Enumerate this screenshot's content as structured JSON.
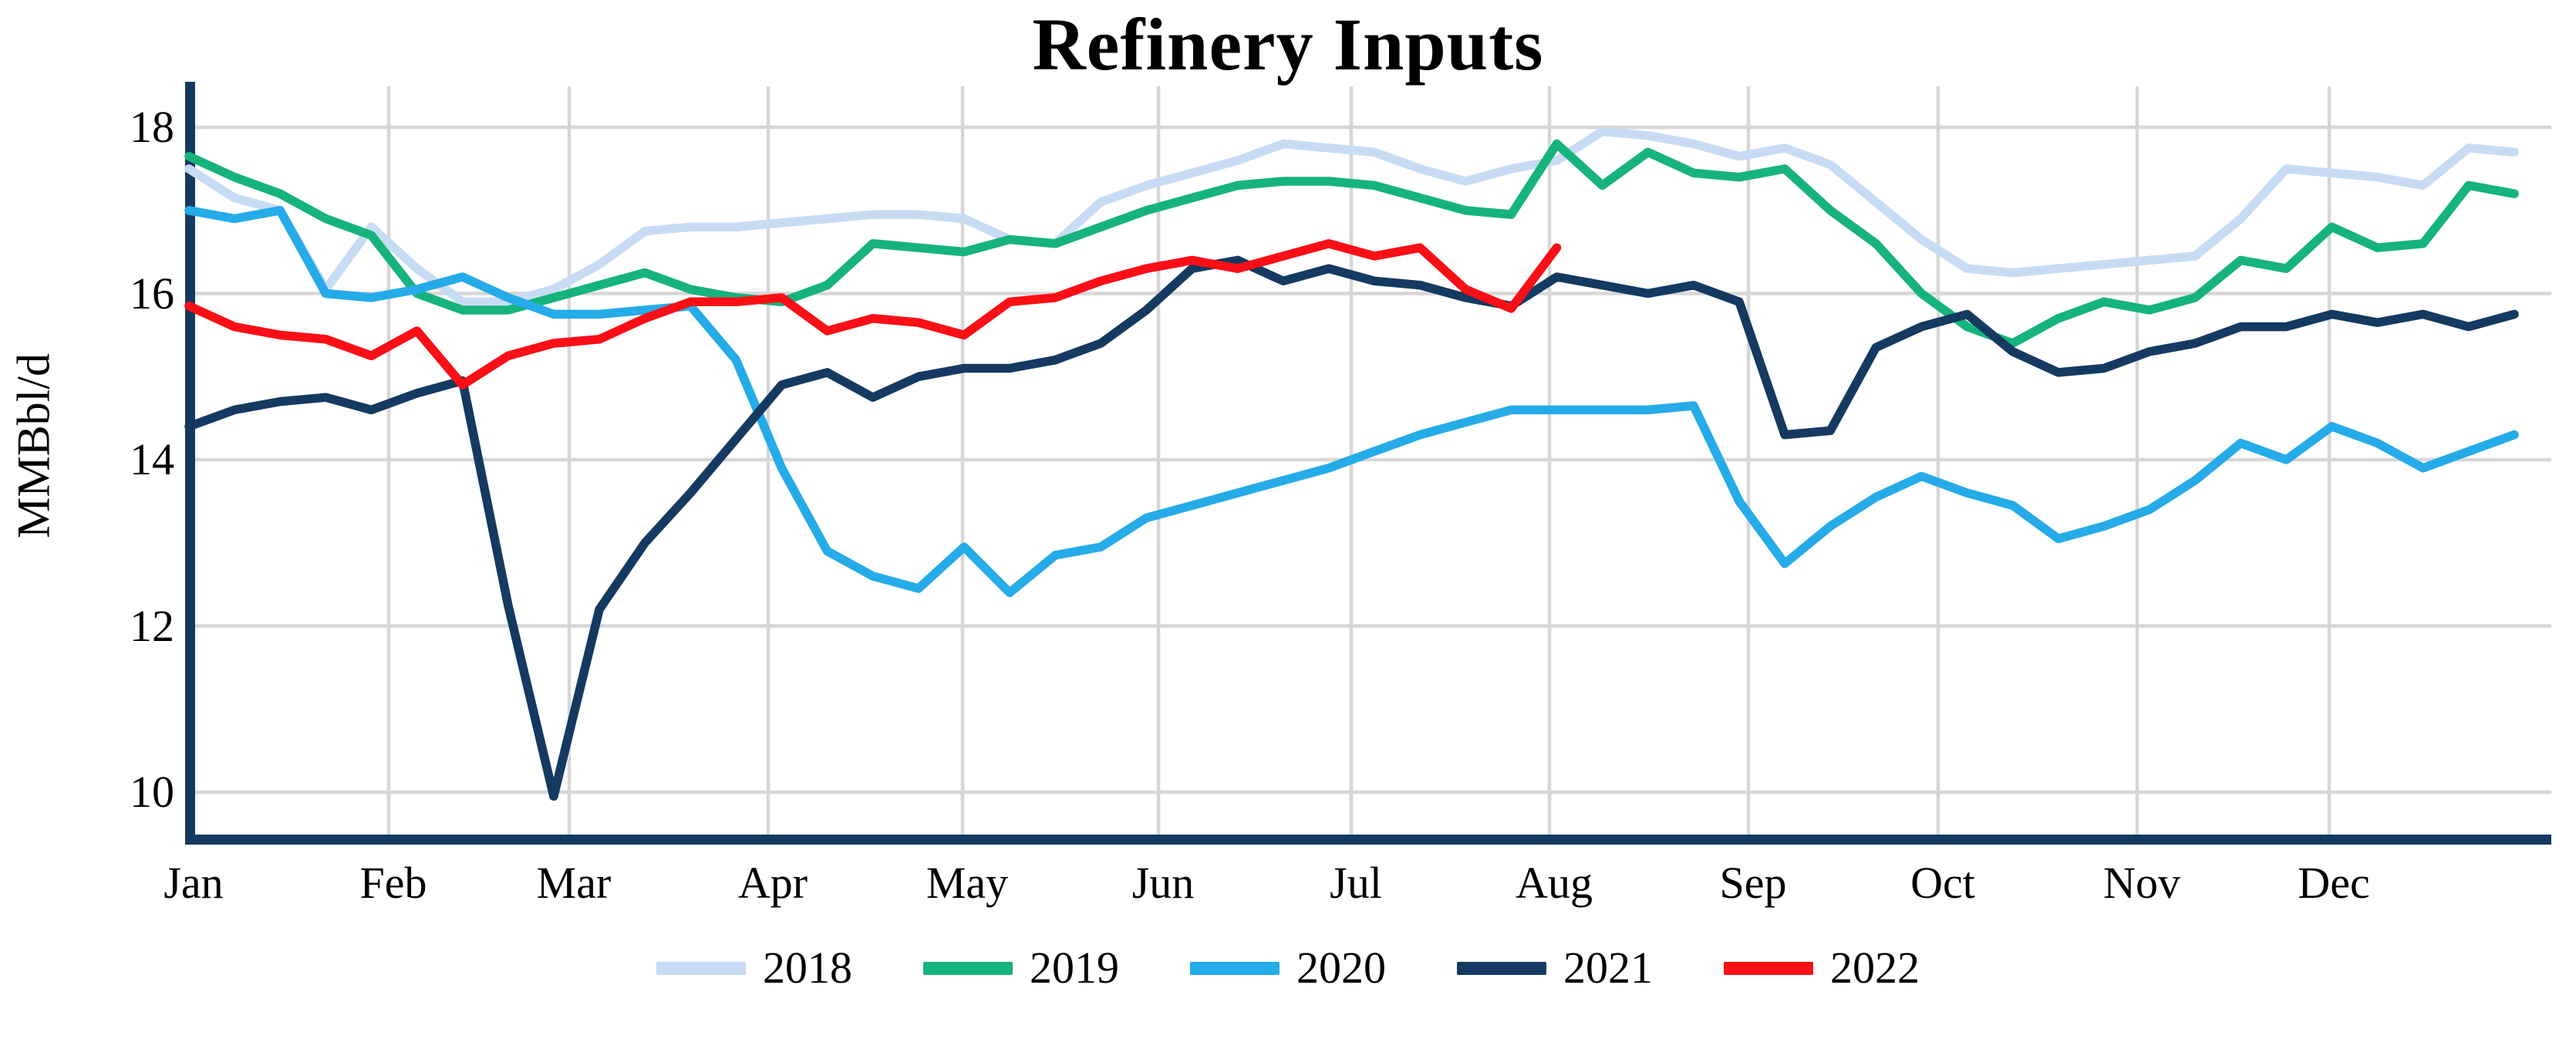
{
  "title": "Refinery Inputs",
  "y_axis": {
    "label": "MMBbl/d",
    "ticks": [
      18,
      16,
      14,
      12,
      10
    ]
  },
  "x_axis": {
    "months": [
      "Jan",
      "Feb",
      "Mar",
      "Apr",
      "May",
      "Jun",
      "Jul",
      "Aug",
      "Sep",
      "Oct",
      "Nov",
      "Dec"
    ]
  },
  "chart_data": {
    "type": "line",
    "title": "Refinery Inputs",
    "xlabel": "",
    "ylabel": "MMBbl/d",
    "x_unit": "week of year (weekly data)",
    "x_tick_labels": [
      "Jan",
      "Feb",
      "Mar",
      "Apr",
      "May",
      "Jun",
      "Jul",
      "Aug",
      "Sep",
      "Oct",
      "Nov",
      "Dec"
    ],
    "y_ticks": [
      18,
      16,
      14,
      12,
      10
    ],
    "ylim": [
      9.3,
      18.6
    ],
    "grid": true,
    "legend_position": "bottom",
    "series": [
      {
        "name": "2018",
        "color": "#c7dcf4",
        "values": [
          17.5,
          17.15,
          17.0,
          16.05,
          16.8,
          16.3,
          15.9,
          15.9,
          16.05,
          16.35,
          16.75,
          16.8,
          16.8,
          16.85,
          16.9,
          16.95,
          16.95,
          16.9,
          16.65,
          16.6,
          17.1,
          17.3,
          17.45,
          17.6,
          17.8,
          17.75,
          17.7,
          17.5,
          17.35,
          17.5,
          17.6,
          17.95,
          17.9,
          17.8,
          17.65,
          17.75,
          17.55,
          17.1,
          16.65,
          16.3,
          16.25,
          16.3,
          16.35,
          16.4,
          16.45,
          16.9,
          17.5,
          17.45,
          17.4,
          17.3,
          17.75,
          17.7
        ]
      },
      {
        "name": "2019",
        "color": "#16b37d",
        "values": [
          17.65,
          17.4,
          17.2,
          16.9,
          16.7,
          16.0,
          15.8,
          15.8,
          15.95,
          16.1,
          16.25,
          16.05,
          15.95,
          15.9,
          16.1,
          16.6,
          16.55,
          16.5,
          16.65,
          16.6,
          16.8,
          17.0,
          17.15,
          17.3,
          17.35,
          17.35,
          17.3,
          17.15,
          17.0,
          16.95,
          17.8,
          17.3,
          17.7,
          17.45,
          17.4,
          17.5,
          17.0,
          16.6,
          16.0,
          15.6,
          15.4,
          15.7,
          15.9,
          15.8,
          15.95,
          16.4,
          16.3,
          16.8,
          16.55,
          16.6,
          17.3,
          17.2
        ]
      },
      {
        "name": "2020",
        "color": "#25abe8",
        "values": [
          17.0,
          16.9,
          17.0,
          16.0,
          15.95,
          16.05,
          16.2,
          15.95,
          15.75,
          15.75,
          15.8,
          15.85,
          15.2,
          13.9,
          12.9,
          12.6,
          12.45,
          12.95,
          12.4,
          12.85,
          12.95,
          13.3,
          13.45,
          13.6,
          13.75,
          13.9,
          14.1,
          14.3,
          14.45,
          14.6,
          14.6,
          14.6,
          14.6,
          14.65,
          13.5,
          12.75,
          13.2,
          13.55,
          13.8,
          13.6,
          13.45,
          13.05,
          13.2,
          13.4,
          13.75,
          14.2,
          14.0,
          14.4,
          14.2,
          13.9,
          14.1,
          14.3
        ]
      },
      {
        "name": "2021",
        "color": "#143a61",
        "values": [
          14.4,
          14.6,
          14.7,
          14.75,
          14.6,
          14.8,
          14.95,
          12.25,
          9.95,
          12.2,
          13.0,
          13.6,
          14.25,
          14.9,
          15.05,
          14.75,
          15.0,
          15.1,
          15.1,
          15.2,
          15.4,
          15.8,
          16.3,
          16.4,
          16.15,
          16.3,
          16.15,
          16.1,
          15.95,
          15.85,
          16.2,
          16.1,
          16.0,
          16.1,
          15.9,
          14.3,
          14.35,
          15.35,
          15.6,
          15.75,
          15.3,
          15.05,
          15.1,
          15.3,
          15.4,
          15.6,
          15.6,
          15.75,
          15.65,
          15.75,
          15.6,
          15.75
        ]
      },
      {
        "name": "2022",
        "color": "#fa0f16",
        "values": [
          15.85,
          15.6,
          15.5,
          15.45,
          15.25,
          15.55,
          14.9,
          15.25,
          15.4,
          15.45,
          15.7,
          15.9,
          15.9,
          15.95,
          15.55,
          15.7,
          15.65,
          15.5,
          15.9,
          15.95,
          16.15,
          16.3,
          16.4,
          16.3,
          16.45,
          16.6,
          16.45,
          16.55,
          16.05,
          15.82,
          16.55
        ]
      }
    ]
  }
}
